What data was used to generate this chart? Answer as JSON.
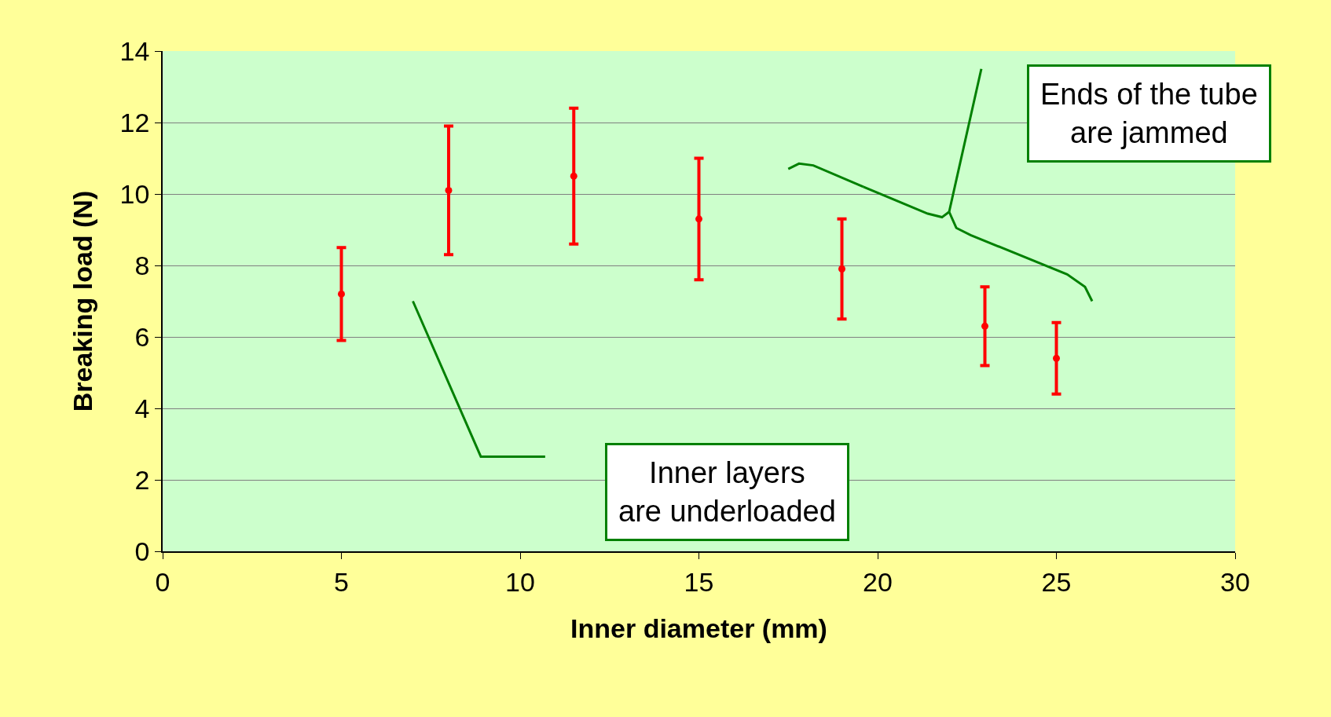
{
  "chart_data": {
    "type": "scatter",
    "xlabel": "Inner diameter (mm)",
    "ylabel": "Breaking load (N)",
    "x": [
      5,
      8,
      11.5,
      15,
      19,
      23,
      25
    ],
    "series": [
      {
        "color": "#ff0000",
        "values": [
          7.2,
          10.1,
          10.5,
          9.3,
          7.9,
          6.3,
          5.4
        ],
        "errors": [
          1.3,
          1.8,
          1.9,
          1.7,
          1.4,
          1.1,
          1.0
        ]
      }
    ],
    "xlim": [
      0,
      30
    ],
    "xticks": [
      0,
      5,
      10,
      15,
      20,
      25,
      30
    ],
    "ylim": [
      0,
      14
    ],
    "yticks": [
      0,
      2,
      4,
      6,
      8,
      10,
      12,
      14
    ],
    "grid": "y",
    "marker": "circle",
    "annotations": [
      "Ends of the tube\nare jammed",
      "Inner layers\nare underloaded"
    ]
  }
}
